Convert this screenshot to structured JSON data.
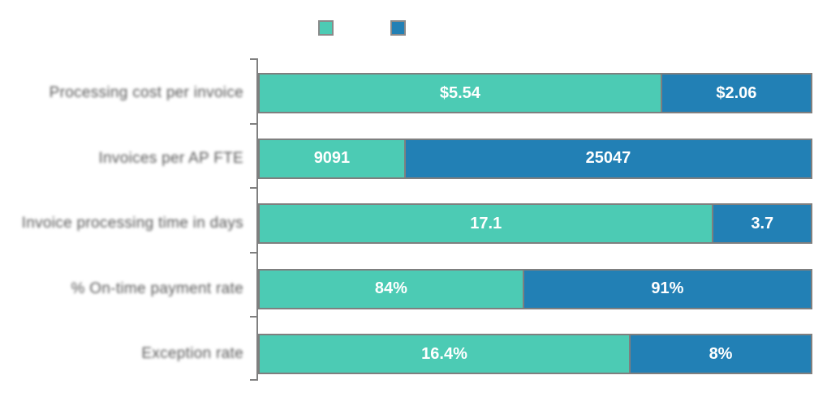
{
  "chart_data": {
    "type": "bar",
    "subtype": "horizontal-stacked-100",
    "title": "",
    "categories": [
      "Processing cost per invoice",
      "Invoices per AP FTE",
      "Invoice processing time in days",
      "% On-time payment rate",
      "Exception rate"
    ],
    "series": [
      {
        "name": "",
        "color": "#4ccbb4",
        "values": [
          5.54,
          9091,
          17.1,
          84,
          16.4
        ],
        "value_labels": [
          "$5.54",
          "9091",
          "17.1",
          "84%",
          "16.4%"
        ]
      },
      {
        "name": "",
        "color": "#2280b5",
        "values": [
          2.06,
          25047,
          3.7,
          91,
          8
        ],
        "value_labels": [
          "$2.06",
          "25047",
          "3.7",
          "91%",
          "8%"
        ]
      }
    ],
    "legend_position": "top",
    "grid": false,
    "axis_line_color": "#808080",
    "tick_color": "#808080",
    "segment_border_color": "#7f7f7f",
    "value_label_color": "#ffffff",
    "category_label_color": "#595959"
  }
}
